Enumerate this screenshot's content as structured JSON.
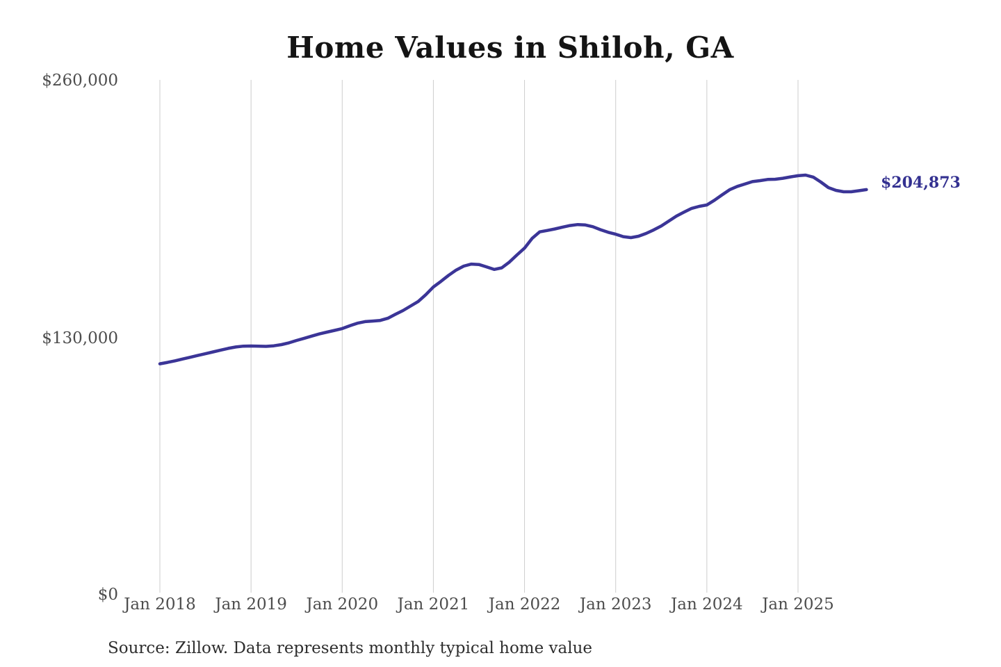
{
  "title": "Home Values in Shiloh, GA",
  "source_note": "Source: Zillow. Data represents monthly typical home value",
  "annotation": {
    "end_label": "$204,873"
  },
  "colors": {
    "line": "#3b3597",
    "end_label": "#333090",
    "grid": "#cccccc",
    "axis_text": "#4d4d4d",
    "title_text": "#141414",
    "source_text": "#2e2e2e",
    "background": "#ffffff"
  },
  "chart_data": {
    "type": "line",
    "title": "Home Values in Shiloh, GA",
    "xlabel": "",
    "ylabel": "",
    "x_tick_labels": [
      "Jan 2018",
      "Jan 2019",
      "Jan 2020",
      "Jan 2021",
      "Jan 2022",
      "Jan 2023",
      "Jan 2024",
      "Jan 2025"
    ],
    "y_tick_labels": [
      "$260,000",
      "$130,000",
      "$0"
    ],
    "y_tick_values": [
      260000,
      130000,
      0
    ],
    "ylim": [
      0,
      260000
    ],
    "grid": "vertical-only",
    "legend": "none",
    "frequency": "monthly",
    "x_start": "2018-01",
    "x_end": "2025-10",
    "end_value": 204873,
    "series": [
      {
        "name": "Typical home value",
        "values": [
          116800,
          117500,
          118300,
          119200,
          120100,
          121000,
          121900,
          122800,
          123700,
          124600,
          125300,
          125700,
          125800,
          125700,
          125600,
          125900,
          126500,
          127400,
          128600,
          129700,
          130800,
          131900,
          132800,
          133700,
          134600,
          136000,
          137300,
          138100,
          138400,
          138700,
          139800,
          141800,
          143700,
          146000,
          148300,
          151700,
          155600,
          158500,
          161500,
          164200,
          166200,
          167200,
          167000,
          165800,
          164500,
          165300,
          168200,
          171800,
          175300,
          180200,
          183500,
          184200,
          185000,
          185900,
          186700,
          187200,
          187000,
          186100,
          184600,
          183300,
          182300,
          181100,
          180600,
          181300,
          182700,
          184500,
          186500,
          189000,
          191500,
          193500,
          195400,
          196400,
          197100,
          199500,
          202200,
          204800,
          206500,
          207700,
          208900,
          209400,
          210000,
          210100,
          210600,
          211300,
          211900,
          212200,
          211200,
          208700,
          205900,
          204500,
          203800,
          203800,
          204300,
          204873
        ]
      }
    ]
  }
}
